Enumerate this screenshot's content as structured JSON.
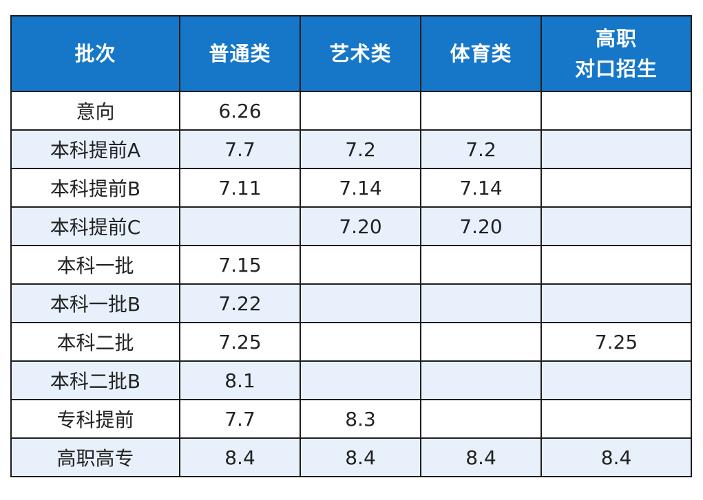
{
  "table": {
    "headers": {
      "batch": "批次",
      "general": "普通类",
      "arts": "艺术类",
      "sports": "体育类",
      "vocational_line1": "高职",
      "vocational_line2": "对口招生"
    },
    "rows": [
      {
        "batch": "意向",
        "general": "6.26",
        "arts": "",
        "sports": "",
        "vocational": ""
      },
      {
        "batch": "本科提前A",
        "general": "7.7",
        "arts": "7.2",
        "sports": "7.2",
        "vocational": ""
      },
      {
        "batch": "本科提前B",
        "general": "7.11",
        "arts": "7.14",
        "sports": "7.14",
        "vocational": ""
      },
      {
        "batch": "本科提前C",
        "general": "",
        "arts": "7.20",
        "sports": "7.20",
        "vocational": ""
      },
      {
        "batch": "本科一批",
        "general": "7.15",
        "arts": "",
        "sports": "",
        "vocational": ""
      },
      {
        "batch": "本科一批B",
        "general": "7.22",
        "arts": "",
        "sports": "",
        "vocational": ""
      },
      {
        "batch": "本科二批",
        "general": "7.25",
        "arts": "",
        "sports": "",
        "vocational": "7.25"
      },
      {
        "batch": "本科二批B",
        "general": "8.1",
        "arts": "",
        "sports": "",
        "vocational": ""
      },
      {
        "batch": "专科提前",
        "general": "7.7",
        "arts": "8.3",
        "sports": "",
        "vocational": ""
      },
      {
        "batch": "高职高专",
        "general": "8.4",
        "arts": "8.4",
        "sports": "8.4",
        "vocational": "8.4"
      }
    ]
  },
  "colors": {
    "header_bg": "#1677c9",
    "header_text": "#ffffff",
    "row_alt_bg": "#e8f1fb",
    "border": "#1c1c1c"
  }
}
